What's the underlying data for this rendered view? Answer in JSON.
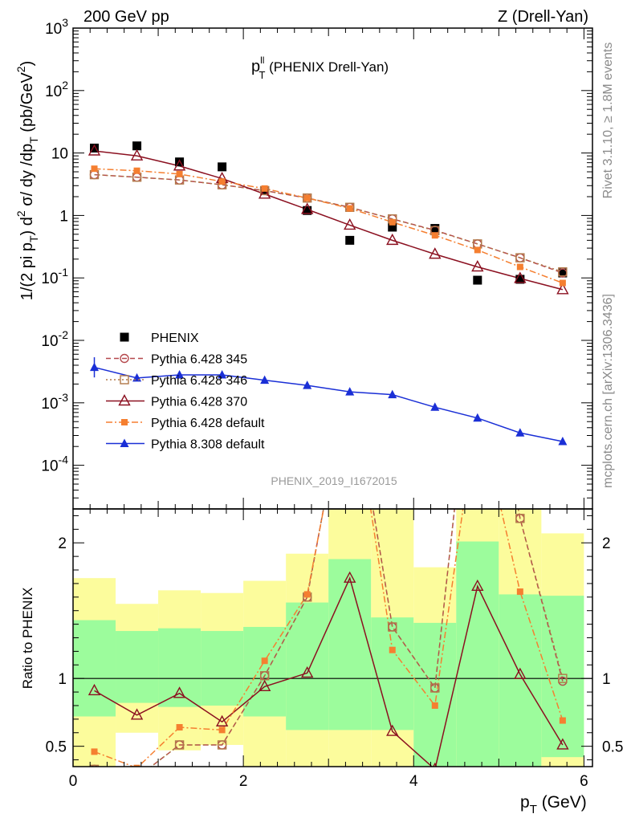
{
  "header": {
    "left": "200 GeV pp",
    "right": "Z (Drell-Yan)"
  },
  "side": {
    "rivet": "Rivet 3.1.10, ≥ 1.8M events",
    "mcplots": "mcplots.cern.ch [arXiv:1306.3436]"
  },
  "plot_title": "p_T^ll (PHENIX Drell-Yan)",
  "analysis_id": "PHENIX_2019_I1672015",
  "colors": {
    "phenix": "#000000",
    "p345": "#b5484c",
    "p346": "#b07848",
    "p370": "#8b1020",
    "pdef": "#f57f30",
    "p8": "#1a2fd6",
    "band_green": "#9cfc9c",
    "band_yellow": "#fcfc9c"
  },
  "chart_data": [
    {
      "type": "scatter",
      "ylog": true,
      "xlim": [
        0,
        6.1
      ],
      "ylim": [
        2e-05,
        1000
      ],
      "ylabel": "1/(2 pi p_T) d^2 σ/ dy /dp_T (pb/GeV^2)",
      "ytick_labels": [
        "10^3",
        "10^2",
        "10",
        "1",
        "10^-1",
        "10^-2",
        "10^-3",
        "10^-4"
      ],
      "x": [
        0.25,
        0.75,
        1.25,
        1.75,
        2.25,
        2.75,
        3.25,
        3.75,
        4.25,
        4.75,
        5.25,
        5.75
      ],
      "series": [
        {
          "name": "PHENIX",
          "key": "phenix",
          "values": [
            12.0,
            13.0,
            7.2,
            6.0,
            2.5,
            1.2,
            0.4,
            0.65,
            0.62,
            0.092,
            0.095,
            0.12
          ]
        },
        {
          "name": "Pythia 6.428 345",
          "key": "p345",
          "values": [
            4.5,
            4.1,
            3.7,
            3.1,
            2.5,
            1.9,
            1.35,
            0.88,
            0.58,
            0.35,
            0.21,
            0.12
          ]
        },
        {
          "name": "Pythia 6.428 346",
          "key": "p346",
          "values": [
            4.5,
            4.1,
            3.7,
            3.1,
            2.5,
            1.9,
            1.35,
            0.88,
            0.57,
            0.35,
            0.21,
            0.125
          ]
        },
        {
          "name": "Pythia 6.428 370",
          "key": "p370",
          "values": [
            10.8,
            9.0,
            6.2,
            3.9,
            2.2,
            1.25,
            0.7,
            0.4,
            0.24,
            0.15,
            0.098,
            0.065
          ]
        },
        {
          "name": "Pythia 6.428 default",
          "key": "pdef",
          "values": [
            5.6,
            5.2,
            4.6,
            3.5,
            2.7,
            1.9,
            1.3,
            0.78,
            0.48,
            0.28,
            0.15,
            0.083
          ]
        },
        {
          "name": "Pythia 8.308 default",
          "key": "p8",
          "values": [
            0.0037,
            0.0025,
            0.0028,
            0.0028,
            0.0023,
            0.0019,
            0.0015,
            0.00135,
            0.00085,
            0.00057,
            0.00033,
            0.00024
          ]
        }
      ]
    },
    {
      "type": "line",
      "xlim": [
        0,
        6.1
      ],
      "ylim": [
        0.35,
        2.25
      ],
      "ylabel": "Ratio to PHENIX",
      "xlabel": "p_T (GeV)",
      "xtick_labels": [
        "0",
        "2",
        "4",
        "6"
      ],
      "ytick_labels": [
        "0.5",
        "1",
        "2"
      ],
      "bins": [
        [
          0,
          0.5
        ],
        [
          0.5,
          1.0
        ],
        [
          1.0,
          1.5
        ],
        [
          1.5,
          2.0
        ],
        [
          2.0,
          2.5
        ],
        [
          2.5,
          3.0
        ],
        [
          3.0,
          3.5
        ],
        [
          3.5,
          4.0
        ],
        [
          4.0,
          4.5
        ],
        [
          4.5,
          5.0
        ],
        [
          5.0,
          5.5
        ],
        [
          5.5,
          6.0
        ]
      ],
      "band_green": [
        [
          0.72,
          1.43
        ],
        [
          0.82,
          1.35
        ],
        [
          0.79,
          1.37
        ],
        [
          0.8,
          1.35
        ],
        [
          0.72,
          1.38
        ],
        [
          0.62,
          1.56
        ],
        [
          0.62,
          1.88
        ],
        [
          0.62,
          1.45
        ],
        [
          0.35,
          1.41
        ],
        [
          0.35,
          2.01
        ],
        [
          0.35,
          1.62
        ],
        [
          0.42,
          1.61
        ]
      ],
      "band_yellow": [
        [
          0.35,
          1.74
        ],
        [
          0.6,
          1.55
        ],
        [
          0.47,
          1.65
        ],
        [
          0.51,
          1.63
        ],
        [
          0.35,
          1.72
        ],
        [
          0.35,
          1.92
        ],
        [
          0.35,
          2.4
        ],
        [
          0.35,
          2.4
        ],
        [
          0.35,
          1.82
        ],
        [
          0.35,
          2.4
        ],
        [
          0.35,
          2.4
        ],
        [
          0.35,
          2.07
        ]
      ],
      "x": [
        0.25,
        0.75,
        1.25,
        1.75,
        2.25,
        2.75,
        3.25,
        3.75,
        4.25,
        4.75,
        5.25,
        5.75
      ],
      "series": [
        {
          "name": "Pythia 6.428 345",
          "key": "p345",
          "values": [
            0.33,
            0.27,
            0.51,
            0.51,
            1.02,
            1.6,
            3.3,
            1.38,
            0.93,
            3.8,
            2.18,
            0.98
          ]
        },
        {
          "name": "Pythia 6.428 346",
          "key": "p346",
          "values": [
            0.33,
            0.27,
            0.51,
            0.51,
            1.02,
            1.6,
            3.3,
            1.38,
            0.93,
            3.8,
            2.18,
            1.0
          ]
        },
        {
          "name": "Pythia 6.428 370",
          "key": "p370",
          "values": [
            0.91,
            0.73,
            0.89,
            0.68,
            0.94,
            1.04,
            1.74,
            0.61,
            0.33,
            1.68,
            1.03,
            0.51
          ]
        },
        {
          "name": "Pythia 6.428 default",
          "key": "pdef",
          "values": [
            0.46,
            0.34,
            0.64,
            0.62,
            1.13,
            1.62,
            3.25,
            1.21,
            0.8,
            3.0,
            1.64,
            0.69
          ]
        }
      ]
    }
  ]
}
